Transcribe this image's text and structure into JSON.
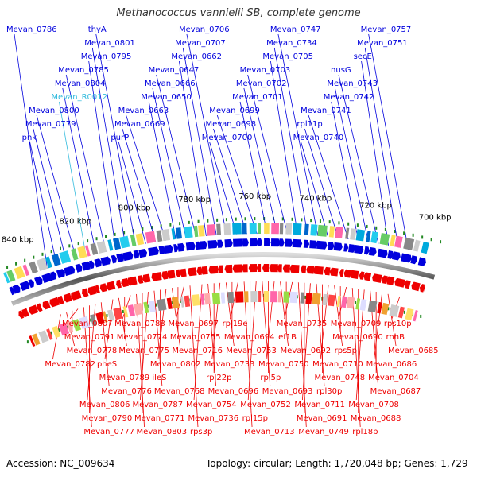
{
  "title": "Methanococcus vannielii SB, complete genome",
  "footer": {
    "accession": "Accession: NC_009634",
    "summary": "Topology: circular; Length: 1,720,048 bp; Genes: 1,729"
  },
  "colors": {
    "forward": "#0000dd",
    "reverse": "#ee0000",
    "rna": "#33bbdd",
    "backbone": "#666666",
    "tick": "#228822"
  },
  "kbp_labels": [
    "700 kbp",
    "720 kbp",
    "740 kbp",
    "760 kbp",
    "780 kbp",
    "800 kbp",
    "820 kbp",
    "840 kbp"
  ],
  "upper_labels": [
    {
      "text": "Mevan_0757"
    },
    {
      "text": "Mevan_0751"
    },
    {
      "text": "secE"
    },
    {
      "text": "nusG"
    },
    {
      "text": "Mevan_0743"
    },
    {
      "text": "Mevan_0742"
    },
    {
      "text": "Mevan_0741"
    },
    {
      "text": "rpl11p"
    },
    {
      "text": "Mevan_0740"
    },
    {
      "text": "Mevan_0747"
    },
    {
      "text": "Mevan_0734"
    },
    {
      "text": "Mevan_0705"
    },
    {
      "text": "Mevan_0703"
    },
    {
      "text": "Mevan_0702"
    },
    {
      "text": "Mevan_0701"
    },
    {
      "text": "Mevan_0699"
    },
    {
      "text": "Mevan_0698"
    },
    {
      "text": "Mevan_0700"
    },
    {
      "text": "Mevan_0706"
    },
    {
      "text": "Mevan_0707"
    },
    {
      "text": "Mevan_0662"
    },
    {
      "text": "Mevan_0647"
    },
    {
      "text": "Mevan_0666"
    },
    {
      "text": "Mevan_0650"
    },
    {
      "text": "Mevan_0663"
    },
    {
      "text": "Mevan_0669"
    },
    {
      "text": "purP"
    },
    {
      "text": "thyA"
    },
    {
      "text": "Mevan_0801"
    },
    {
      "text": "Mevan_0795"
    },
    {
      "text": "Mevan_0785"
    },
    {
      "text": "Mevan_0804"
    },
    {
      "text": "Mevan_R0012",
      "rna": true
    },
    {
      "text": "Mevan_0800"
    },
    {
      "text": "Mevan_0779"
    },
    {
      "text": "pnk"
    },
    {
      "text": "Mevan_0786"
    }
  ],
  "lower_labels": [
    {
      "text": "rps10p"
    },
    {
      "text": "rnhB"
    },
    {
      "text": "Mevan_0685"
    },
    {
      "text": "Mevan_0686"
    },
    {
      "text": "Mevan_0704"
    },
    {
      "text": "Mevan_0687"
    },
    {
      "text": "Mevan_0708"
    },
    {
      "text": "Mevan_0688"
    },
    {
      "text": "rpl18p"
    },
    {
      "text": "Mevan_0709"
    },
    {
      "text": "Mevan_0690"
    },
    {
      "text": "rps5p"
    },
    {
      "text": "Mevan_0710"
    },
    {
      "text": "Mevan_0748"
    },
    {
      "text": "rpl30p"
    },
    {
      "text": "Mevan_0711"
    },
    {
      "text": "Mevan_0691"
    },
    {
      "text": "Mevan_0749"
    },
    {
      "text": "Mevan_0735"
    },
    {
      "text": "ef1B"
    },
    {
      "text": "Mevan_0692"
    },
    {
      "text": "Mevan_0750"
    },
    {
      "text": "rpl5p"
    },
    {
      "text": "Mevan_0693"
    },
    {
      "text": "Mevan_0752"
    },
    {
      "text": "rpl15p"
    },
    {
      "text": "Mevan_0713"
    },
    {
      "text": "rpl19e"
    },
    {
      "text": "Mevan_0694"
    },
    {
      "text": "Mevan_0753"
    },
    {
      "text": "Mevan_0733"
    },
    {
      "text": "rpl22p"
    },
    {
      "text": "Mevan_0696"
    },
    {
      "text": "Mevan_0754"
    },
    {
      "text": "Mevan_0736"
    },
    {
      "text": "rps3p"
    },
    {
      "text": "Mevan_0697"
    },
    {
      "text": "Mevan_0755"
    },
    {
      "text": "Mevan_0716"
    },
    {
      "text": "Mevan_0802"
    },
    {
      "text": "ileS"
    },
    {
      "text": "Mevan_0768"
    },
    {
      "text": "Mevan_0787"
    },
    {
      "text": "Mevan_0771"
    },
    {
      "text": "Mevan_0803"
    },
    {
      "text": "Mevan_0788"
    },
    {
      "text": "Mevan_0774"
    },
    {
      "text": "Mevan_0775"
    },
    {
      "text": "pheS"
    },
    {
      "text": "Mevan_0789"
    },
    {
      "text": "Mevan_0776"
    },
    {
      "text": "Mevan_0806"
    },
    {
      "text": "Mevan_0790"
    },
    {
      "text": "Mevan_0777"
    },
    {
      "text": "Mevan_0807"
    },
    {
      "text": "Mevan_0791"
    },
    {
      "text": "Mevan_0778"
    },
    {
      "text": "Mevan_0782"
    }
  ]
}
